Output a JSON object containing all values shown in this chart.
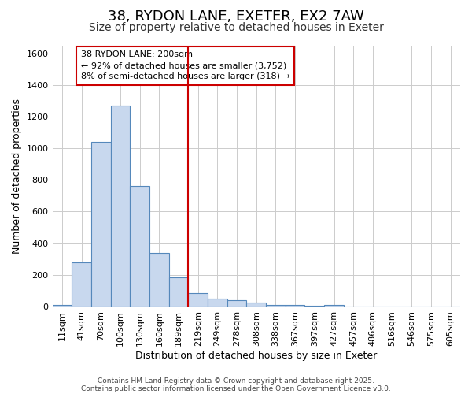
{
  "title_line1": "38, RYDON LANE, EXETER, EX2 7AW",
  "title_line2": "Size of property relative to detached houses in Exeter",
  "xlabel": "Distribution of detached houses by size in Exeter",
  "ylabel": "Number of detached properties",
  "bar_labels": [
    "11sqm",
    "41sqm",
    "70sqm",
    "100sqm",
    "130sqm",
    "160sqm",
    "189sqm",
    "219sqm",
    "249sqm",
    "278sqm",
    "308sqm",
    "338sqm",
    "367sqm",
    "397sqm",
    "427sqm",
    "457sqm",
    "486sqm",
    "516sqm",
    "546sqm",
    "575sqm",
    "605sqm"
  ],
  "bar_values": [
    10,
    280,
    1040,
    1270,
    760,
    340,
    185,
    85,
    48,
    38,
    25,
    12,
    8,
    5,
    10,
    2,
    2,
    0,
    2,
    0,
    2
  ],
  "bar_color": "#c8d8ee",
  "bar_edgecolor": "#5588bb",
  "vline_x_index": 6,
  "vline_color": "#cc0000",
  "ylim": [
    0,
    1650
  ],
  "yticks": [
    0,
    200,
    400,
    600,
    800,
    1000,
    1200,
    1400,
    1600
  ],
  "annotation_title": "38 RYDON LANE: 200sqm",
  "annotation_line1": "← 92% of detached houses are smaller (3,752)",
  "annotation_line2": "8% of semi-detached houses are larger (318) →",
  "footer_line1": "Contains HM Land Registry data © Crown copyright and database right 2025.",
  "footer_line2": "Contains public sector information licensed under the Open Government Licence v3.0.",
  "bg_color": "#ffffff",
  "grid_color": "#cccccc",
  "title_fontsize": 13,
  "subtitle_fontsize": 10,
  "axis_label_fontsize": 9,
  "tick_fontsize": 8,
  "annotation_fontsize": 8
}
